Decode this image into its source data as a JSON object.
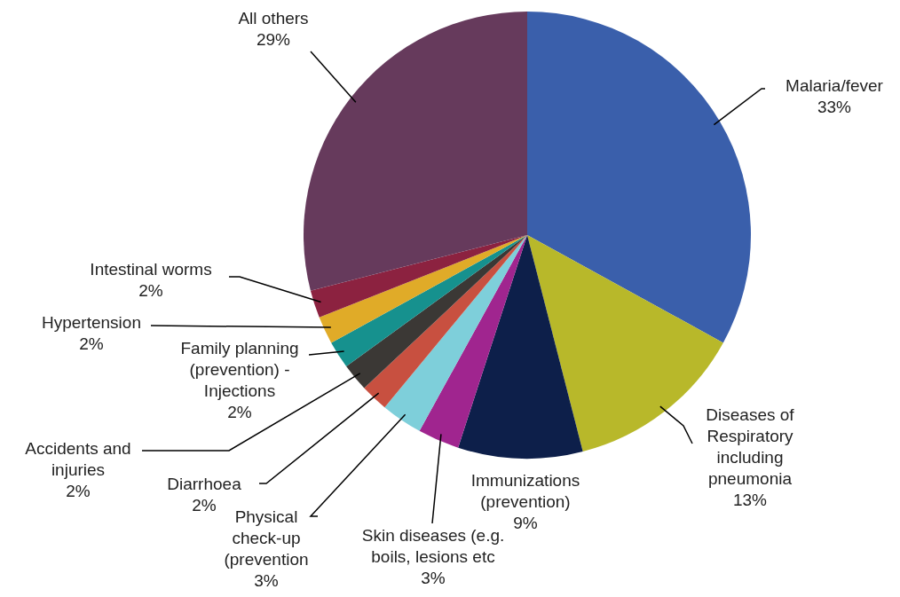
{
  "chart_data": {
    "type": "pie",
    "categories": [
      "Malaria/fever",
      "Diseases of Respiratory including pneumonia",
      "Immunizations (prevention)",
      "Skin diseases (e.g. boils, lesions etc",
      "Physical check-up (prevention",
      "Diarrhoea",
      "Accidents and injuries",
      "Family planning (prevention) - Injections",
      "Hypertension",
      "Intestinal worms",
      "All others"
    ],
    "values": [
      33,
      13,
      9,
      3,
      3,
      2,
      2,
      2,
      2,
      2,
      29
    ],
    "value_labels": [
      "33%",
      "13%",
      "9%",
      "3%",
      "3%",
      "2%",
      "2%",
      "2%",
      "2%",
      "2%",
      "29%"
    ],
    "colors": [
      "#3a5fab",
      "#b8b82a",
      "#0d1f4a",
      "#a0258f",
      "#7ecfda",
      "#c85040",
      "#3b3835",
      "#16918e",
      "#e0ab28",
      "#8c2240",
      "#663a5c"
    ]
  }
}
